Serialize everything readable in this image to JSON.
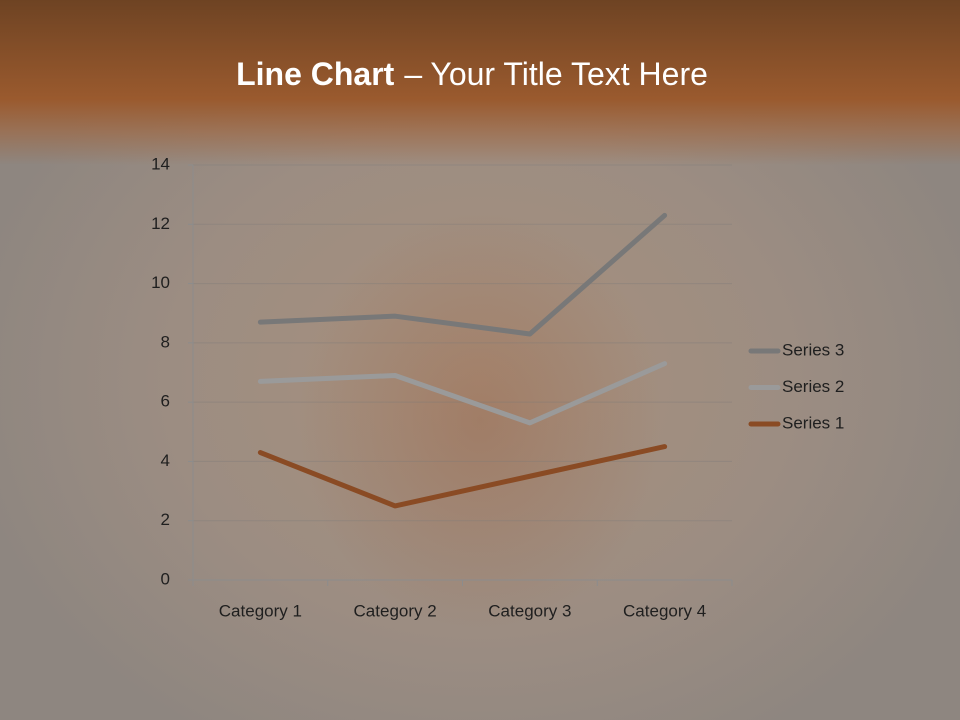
{
  "chart_data": {
    "type": "line",
    "stacked": true,
    "title": {
      "bold": "Line Chart",
      "rest": "– Your Title Text Here"
    },
    "categories": [
      "Category 1",
      "Category 2",
      "Category 3",
      "Category 4"
    ],
    "series": [
      {
        "name": "Series 1",
        "color": "#8a4b24",
        "values": [
          4.3,
          2.5,
          3.5,
          4.5
        ]
      },
      {
        "name": "Series 2",
        "color": "#9a9a9a",
        "values": [
          2.4,
          4.4,
          1.8,
          2.8
        ]
      },
      {
        "name": "Series 3",
        "color": "#787878",
        "values": [
          2,
          2,
          3,
          5
        ]
      }
    ],
    "ylim": [
      0,
      14
    ],
    "yticks": [
      0,
      2,
      4,
      6,
      8,
      10,
      12,
      14
    ],
    "grid": true,
    "legend": "right"
  }
}
